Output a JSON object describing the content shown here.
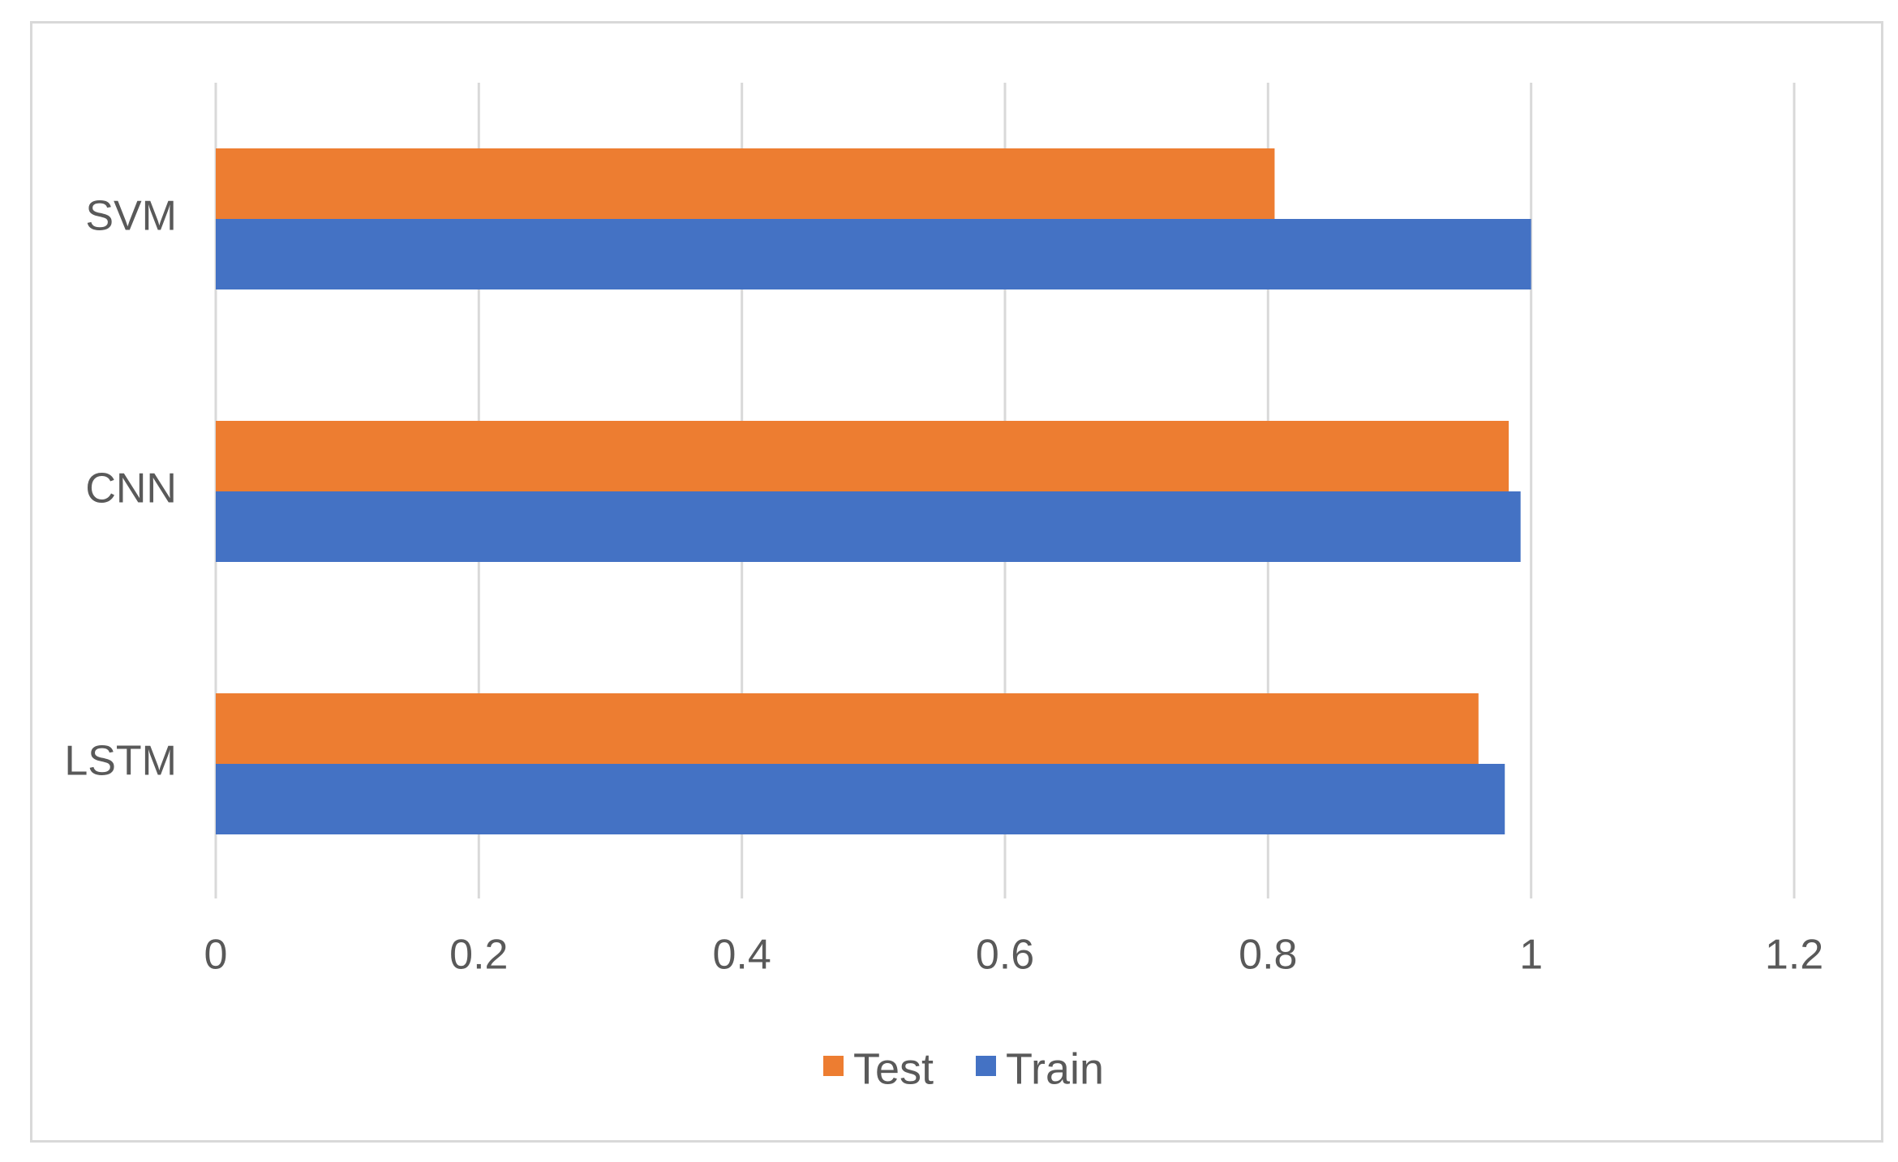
{
  "chart_data": {
    "type": "bar",
    "orientation": "horizontal",
    "categories": [
      "SVM",
      "CNN",
      "LSTM"
    ],
    "series": [
      {
        "name": "Test",
        "color": "#ED7D31",
        "values": [
          0.805,
          0.983,
          0.96
        ]
      },
      {
        "name": "Train",
        "color": "#4472C4",
        "values": [
          1.0,
          0.992,
          0.98
        ]
      }
    ],
    "xlim": [
      0,
      1.2
    ],
    "xticks": [
      0,
      0.2,
      0.4,
      0.6,
      0.8,
      1,
      1.2
    ],
    "xtick_labels": [
      "0",
      "0.2",
      "0.4",
      "0.6",
      "0.8",
      "1",
      "1.2"
    ],
    "grid": "vertical",
    "gridline_color": "#d9d9d9",
    "legend_placement": "bottom",
    "title": "",
    "xlabel": "",
    "ylabel": ""
  }
}
